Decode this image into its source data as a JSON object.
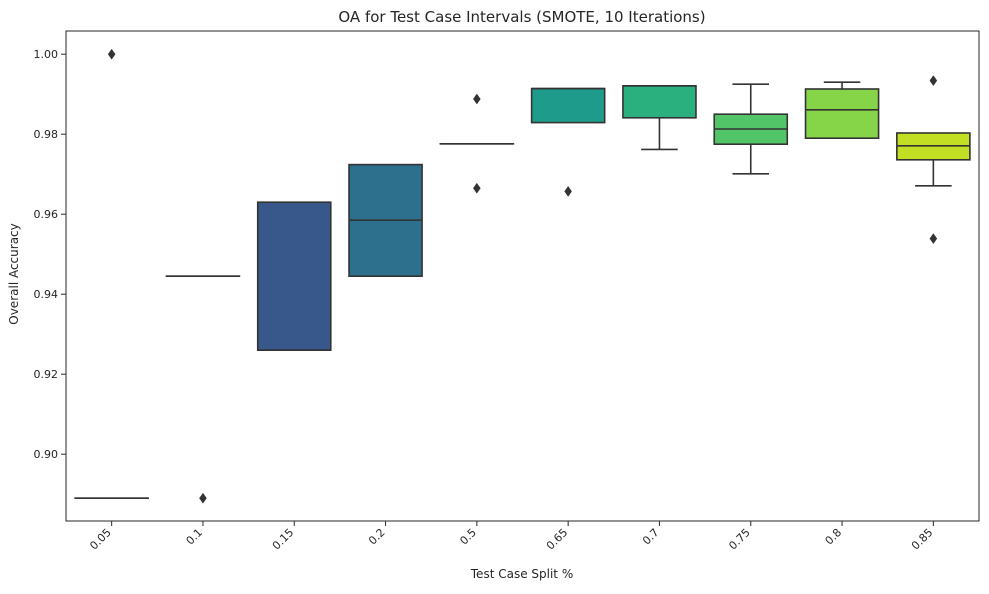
{
  "chart_data": {
    "type": "box",
    "title": "OA for Test Case Intervals (SMOTE, 10 Iterations)",
    "xlabel": "Test Case Split %",
    "ylabel": "Overall Accuracy",
    "ylim": [
      0.8833,
      1.0058
    ],
    "yticks": [
      0.9,
      0.92,
      0.94,
      0.96,
      0.98,
      1.0
    ],
    "ytick_labels": [
      "0.90",
      "0.92",
      "0.94",
      "0.96",
      "0.98",
      "1.00"
    ],
    "grid": false,
    "categories": [
      "0.05",
      "0.1",
      "0.15",
      "0.2",
      "0.5",
      "0.65",
      "0.7",
      "0.75",
      "0.8",
      "0.85"
    ],
    "boxes": [
      {
        "q1": 0.889,
        "median": 0.889,
        "q3": 0.889,
        "whisker_low": 0.889,
        "whisker_high": 0.889,
        "outliers": [
          1.0
        ],
        "color": "#482173"
      },
      {
        "q1": 0.9445,
        "median": 0.9445,
        "q3": 0.9445,
        "whisker_low": 0.9445,
        "whisker_high": 0.9445,
        "outliers": [
          0.889
        ],
        "color": "#433e85"
      },
      {
        "q1": 0.926,
        "median": 0.926,
        "q3": 0.963,
        "whisker_low": 0.926,
        "whisker_high": 0.963,
        "outliers": [],
        "color": "#38588c"
      },
      {
        "q1": 0.9445,
        "median": 0.9585,
        "q3": 0.9724,
        "whisker_low": 0.9445,
        "whisker_high": 0.9724,
        "outliers": [],
        "color": "#2d708e"
      },
      {
        "q1": 0.9776,
        "median": 0.9776,
        "q3": 0.9776,
        "whisker_low": 0.9776,
        "whisker_high": 0.9776,
        "outliers": [
          0.9888,
          0.9665
        ],
        "color": "#25858e"
      },
      {
        "q1": 0.9829,
        "median": 0.9914,
        "q3": 0.9914,
        "whisker_low": 0.9829,
        "whisker_high": 0.9914,
        "outliers": [
          0.9657
        ],
        "color": "#1e9b8a"
      },
      {
        "q1": 0.9841,
        "median": 0.9921,
        "q3": 0.9921,
        "whisker_low": 0.9762,
        "whisker_high": 0.9921,
        "outliers": [],
        "color": "#2ab07f"
      },
      {
        "q1": 0.9775,
        "median": 0.9813,
        "q3": 0.985,
        "whisker_low": 0.9701,
        "whisker_high": 0.9925,
        "outliers": [],
        "color": "#52c569"
      },
      {
        "q1": 0.979,
        "median": 0.9861,
        "q3": 0.9913,
        "whisker_low": 0.979,
        "whisker_high": 0.993,
        "outliers": [],
        "color": "#86d549"
      },
      {
        "q1": 0.9736,
        "median": 0.9771,
        "q3": 0.9803,
        "whisker_low": 0.9671,
        "whisker_high": 0.9803,
        "outliers": [
          0.9539,
          0.9934
        ],
        "color": "#c2df23"
      }
    ]
  }
}
